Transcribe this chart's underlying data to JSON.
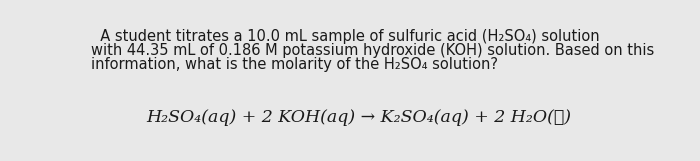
{
  "background_color": "#e8e8e8",
  "text_color": "#1a1a1a",
  "paragraph_line1": "  A student titrates a 10.0 mL sample of sulfuric acid (H₂SO₄) solution",
  "paragraph_line2": "with 44.35 mL of 0.186 M potassium hydroxide (KOH) solution. Based on this",
  "paragraph_line3": "information, what is the molarity of the H₂SO₄ solution?",
  "equation": "H₂SO₄(aq) + 2 KOH(aq) → K₂SO₄(aq) + 2 H₂O(ℓ)",
  "para_fontsize": 10.5,
  "eq_fontsize": 12.5,
  "fig_width": 7.0,
  "fig_height": 1.61
}
